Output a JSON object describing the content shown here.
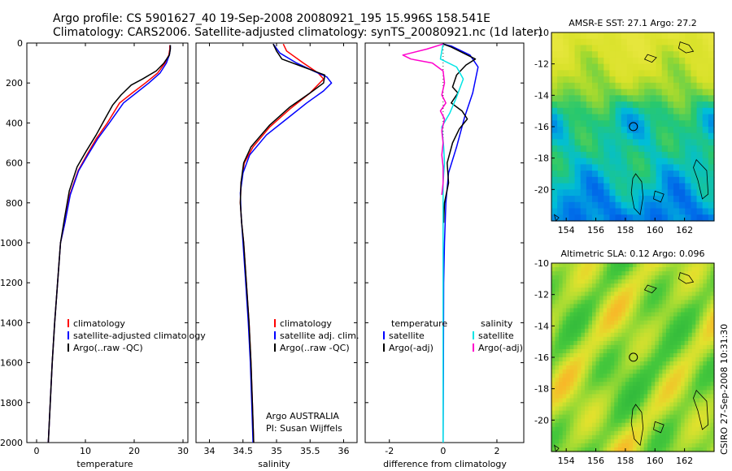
{
  "header": {
    "line1": "Argo profile: CS 5901627_40 19-Sep-2008 20080921_195 15.996S 158.541E",
    "line2": "Climatology: CARS2006. Satellite-adjusted climatology: synTS_20080921.nc (1d later)"
  },
  "side_text": "CSIRO 27-Sep-2008 10:31:30",
  "colors": {
    "red": "#ff0000",
    "blue": "#0000ff",
    "black": "#000000",
    "cyan": "#00e5e5",
    "magenta": "#ff00cc"
  },
  "chart_data": [
    {
      "type": "line",
      "xlabel": "temperature",
      "xlim": [
        -2,
        31
      ],
      "ylim": [
        2000,
        0
      ],
      "xticks": [
        0,
        10,
        20,
        30
      ],
      "yticks": [
        0,
        200,
        400,
        600,
        800,
        1000,
        1200,
        1400,
        1600,
        1800,
        2000
      ],
      "legend": {
        "placement": "bottom-left",
        "entries": [
          "climatology",
          "satellite-adjusted climatology",
          "Argo(..raw -QC)"
        ]
      },
      "series": [
        {
          "name": "climatology",
          "color": "red",
          "points": [
            [
              27.3,
              10
            ],
            [
              27.3,
              30
            ],
            [
              27.1,
              60
            ],
            [
              26.3,
              100
            ],
            [
              24.8,
              150
            ],
            [
              22.3,
              200
            ],
            [
              19.6,
              250
            ],
            [
              17,
              300
            ],
            [
              14.5,
              400
            ],
            [
              12.2,
              480
            ],
            [
              10.3,
              560
            ],
            [
              8.5,
              640
            ],
            [
              6.8,
              760
            ],
            [
              5.8,
              900
            ],
            [
              4.9,
              1000
            ],
            [
              4.3,
              1200
            ],
            [
              3.7,
              1400
            ],
            [
              3.2,
              1600
            ],
            [
              2.8,
              1800
            ],
            [
              2.4,
              2000
            ]
          ]
        },
        {
          "name": "satellite-adjusted climatology",
          "color": "blue",
          "points": [
            [
              27.4,
              10
            ],
            [
              27.4,
              30
            ],
            [
              27.2,
              60
            ],
            [
              26.6,
              100
            ],
            [
              25.3,
              150
            ],
            [
              23,
              200
            ],
            [
              20.4,
              250
            ],
            [
              17.8,
              300
            ],
            [
              14.9,
              400
            ],
            [
              12.5,
              480
            ],
            [
              10.5,
              560
            ],
            [
              8.6,
              640
            ],
            [
              6.9,
              760
            ],
            [
              5.8,
              900
            ],
            [
              4.9,
              1000
            ],
            [
              4.3,
              1200
            ],
            [
              3.7,
              1400
            ],
            [
              3.2,
              1600
            ],
            [
              2.8,
              1800
            ],
            [
              2.4,
              2000
            ]
          ]
        },
        {
          "name": "Argo(..raw -QC)",
          "color": "black",
          "points": [
            [
              27.4,
              10
            ],
            [
              27.4,
              30
            ],
            [
              27.2,
              60
            ],
            [
              26.1,
              100
            ],
            [
              24.5,
              140
            ],
            [
              21.7,
              180
            ],
            [
              19.4,
              210
            ],
            [
              17.3,
              260
            ],
            [
              15.6,
              310
            ],
            [
              14,
              380
            ],
            [
              12.2,
              460
            ],
            [
              10.2,
              540
            ],
            [
              8.3,
              620
            ],
            [
              6.7,
              740
            ],
            [
              5.7,
              880
            ],
            [
              4.9,
              1000
            ],
            [
              4.3,
              1200
            ],
            [
              3.7,
              1400
            ],
            [
              3.2,
              1600
            ],
            [
              2.8,
              1800
            ],
            [
              2.4,
              2000
            ]
          ]
        }
      ]
    },
    {
      "type": "line",
      "xlabel": "salinity",
      "xlim": [
        33.8,
        36.2
      ],
      "ylim": [
        2000,
        0
      ],
      "xticks": [
        34,
        34.5,
        35,
        35.5,
        36
      ],
      "yticks": [
        0,
        200,
        400,
        600,
        800,
        1000,
        1200,
        1400,
        1600,
        1800,
        2000
      ],
      "legend": {
        "placement": "bottom-right",
        "entries": [
          "climatology",
          "satellite adj. clim.",
          "Argo(..raw -QC)"
        ]
      },
      "annotation": [
        "Argo AUSTRALIA",
        "PI: Susan Wijffels"
      ],
      "series": [
        {
          "name": "climatology",
          "color": "red",
          "points": [
            [
              35.1,
              5
            ],
            [
              35.15,
              40
            ],
            [
              35.4,
              100
            ],
            [
              35.62,
              150
            ],
            [
              35.7,
              180
            ],
            [
              35.5,
              250
            ],
            [
              35.2,
              330
            ],
            [
              34.9,
              420
            ],
            [
              34.65,
              520
            ],
            [
              34.52,
              600
            ],
            [
              34.47,
              700
            ],
            [
              34.46,
              800
            ],
            [
              34.48,
              900
            ],
            [
              34.51,
              1000
            ],
            [
              34.55,
              1200
            ],
            [
              34.59,
              1400
            ],
            [
              34.62,
              1600
            ],
            [
              34.64,
              1800
            ],
            [
              34.66,
              2000
            ]
          ]
        },
        {
          "name": "satellite adj. clim.",
          "color": "blue",
          "points": [
            [
              34.95,
              5
            ],
            [
              35.05,
              50
            ],
            [
              35.3,
              100
            ],
            [
              35.55,
              140
            ],
            [
              35.75,
              170
            ],
            [
              35.82,
              200
            ],
            [
              35.7,
              240
            ],
            [
              35.45,
              300
            ],
            [
              35.15,
              380
            ],
            [
              34.85,
              460
            ],
            [
              34.6,
              560
            ],
            [
              34.5,
              650
            ],
            [
              34.46,
              750
            ],
            [
              34.47,
              850
            ],
            [
              34.5,
              1000
            ],
            [
              34.54,
              1200
            ],
            [
              34.58,
              1400
            ],
            [
              34.61,
              1600
            ],
            [
              34.63,
              1800
            ],
            [
              34.65,
              2000
            ]
          ]
        },
        {
          "name": "Argo(..raw -QC)",
          "color": "black",
          "points": [
            [
              34.95,
              5
            ],
            [
              35,
              40
            ],
            [
              35.08,
              80
            ],
            [
              35.4,
              120
            ],
            [
              35.72,
              160
            ],
            [
              35.7,
              200
            ],
            [
              35.5,
              250
            ],
            [
              35.2,
              320
            ],
            [
              34.9,
              410
            ],
            [
              34.62,
              520
            ],
            [
              34.51,
              600
            ],
            [
              34.47,
              700
            ],
            [
              34.46,
              800
            ],
            [
              34.48,
              900
            ],
            [
              34.51,
              1000
            ],
            [
              34.55,
              1200
            ],
            [
              34.59,
              1400
            ],
            [
              34.62,
              1600
            ],
            [
              34.64,
              1800
            ],
            [
              34.66,
              2000
            ]
          ]
        }
      ]
    },
    {
      "type": "line",
      "xlabel": "difference from climatology",
      "xlim": [
        -2.9,
        3
      ],
      "ylim": [
        2000,
        0
      ],
      "xticks": [
        -2,
        0,
        2
      ],
      "yticks": [
        0,
        200,
        400,
        600,
        800,
        1000,
        1200,
        1400,
        1600,
        1800,
        2000
      ],
      "legend": {
        "placement": "bottom",
        "entries": [
          "temperature",
          "satellite",
          "Argo(-adj)",
          "salinity",
          "satellite",
          "Argo(-adj)"
        ]
      },
      "series": [
        {
          "name": "temperature satellite",
          "color": "blue",
          "points": [
            [
              0,
              5
            ],
            [
              0.3,
              15
            ],
            [
              1,
              60
            ],
            [
              1.3,
              120
            ],
            [
              1.1,
              250
            ],
            [
              0.8,
              370
            ],
            [
              0.5,
              520
            ],
            [
              0.2,
              650
            ],
            [
              0.1,
              800
            ],
            [
              0.05,
              1000
            ],
            [
              0.02,
              1200
            ],
            [
              0.01,
              1600
            ],
            [
              0,
              2000
            ]
          ]
        },
        {
          "name": "temperature Argo(-adj)",
          "color": "black",
          "points": [
            [
              0,
              5
            ],
            [
              0.3,
              20
            ],
            [
              1.2,
              80
            ],
            [
              0.85,
              110
            ],
            [
              0.5,
              160
            ],
            [
              0.35,
              220
            ],
            [
              0.55,
              250
            ],
            [
              0.3,
              300
            ],
            [
              0.7,
              340
            ],
            [
              0.9,
              380
            ],
            [
              0.6,
              430
            ],
            [
              0.35,
              500
            ],
            [
              0.15,
              600
            ],
            [
              0.2,
              700
            ],
            [
              0.05,
              800
            ],
            [
              0.02,
              900
            ]
          ]
        },
        {
          "name": "salinity satellite",
          "color": "cyan",
          "points": [
            [
              0,
              5
            ],
            [
              -0.05,
              40
            ],
            [
              -0.1,
              80
            ],
            [
              0.5,
              120
            ],
            [
              0.75,
              180
            ],
            [
              0.5,
              270
            ],
            [
              0.25,
              350
            ],
            [
              -0.05,
              420
            ],
            [
              0.02,
              520
            ],
            [
              0.05,
              600
            ],
            [
              0,
              700
            ],
            [
              0,
              1000
            ],
            [
              0,
              1400
            ],
            [
              0,
              2000
            ]
          ]
        },
        {
          "name": "salinity Argo(-adj)",
          "color": "magenta",
          "points": [
            [
              0,
              5
            ],
            [
              -0.6,
              30
            ],
            [
              -1.5,
              60
            ],
            [
              -1.2,
              80
            ],
            [
              -0.4,
              100
            ],
            [
              0,
              140
            ],
            [
              0.05,
              200
            ],
            [
              -0.05,
              260
            ],
            [
              0.1,
              300
            ],
            [
              -0.1,
              340
            ],
            [
              0.05,
              380
            ],
            [
              -0.05,
              440
            ],
            [
              0,
              500
            ],
            [
              -0.05,
              560
            ],
            [
              0,
              620
            ],
            [
              0,
              700
            ],
            [
              -0.05,
              760
            ]
          ]
        }
      ]
    },
    {
      "type": "heatmap",
      "title": "AMSR-E SST: 27.1 Argo: 27.2",
      "xticks": [
        154,
        156,
        158,
        160,
        162
      ],
      "yticks": [
        -10,
        -12,
        -14,
        -16,
        -18,
        -20
      ],
      "xlim": [
        153,
        164
      ],
      "ylim": [
        -22,
        -10
      ],
      "marker": {
        "lon": 158.541,
        "lat": -15.996
      }
    },
    {
      "type": "heatmap",
      "title": "Altimetric SLA: 0.12 Argo: 0.096",
      "xticks": [
        154,
        156,
        158,
        160,
        162
      ],
      "yticks": [
        -10,
        -12,
        -14,
        -16,
        -18,
        -20
      ],
      "xlim": [
        153,
        164
      ],
      "ylim": [
        -22,
        -10
      ],
      "marker": {
        "lon": 158.541,
        "lat": -15.996
      }
    }
  ]
}
